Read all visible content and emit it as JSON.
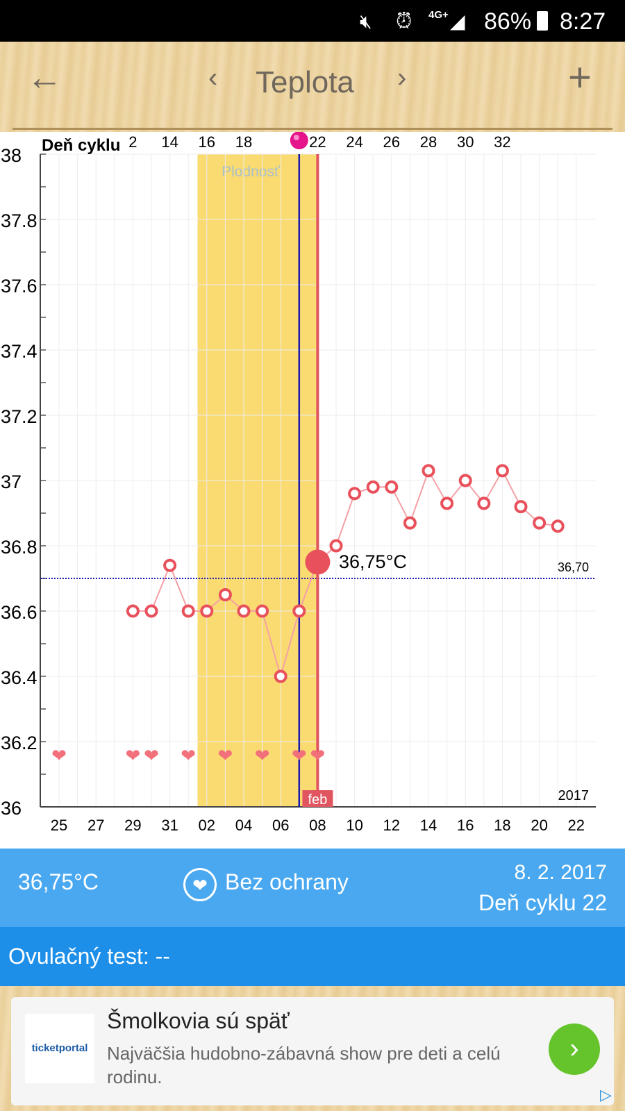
{
  "status_bar": {
    "battery": "86%",
    "time": "8:27",
    "network": "4G+",
    "icons": [
      "mute-icon",
      "alarm-icon",
      "signal-icon",
      "battery-icon"
    ]
  },
  "header": {
    "title": "Teplota",
    "back_icon": "←",
    "prev_icon": "‹",
    "next_icon": "›",
    "add_icon": "+"
  },
  "chart_data": {
    "type": "line",
    "top_axis_label": "Deň cyklu",
    "top_ticks": [
      "2",
      "14",
      "16",
      "18",
      "",
      "22",
      "24",
      "26",
      "28",
      "30",
      "32"
    ],
    "ovulation_marker_day": "20",
    "x_tick_labels": [
      "25",
      "27",
      "29",
      "31",
      "02",
      "04",
      "06",
      "08",
      "10",
      "12",
      "14",
      "16",
      "18",
      "20",
      "22"
    ],
    "y_tick_labels": [
      "38",
      "37.8",
      "37.6",
      "37.4",
      "37.2",
      "37",
      "36.8",
      "36.6",
      "36.4",
      "36.2",
      "36"
    ],
    "ylim": [
      36.0,
      38.0
    ],
    "year_label": "2017",
    "month_label": "feb",
    "fertility_label": "Plodnosť",
    "coverline": 36.7,
    "coverline_label": "36,70",
    "selected_label": "36,75°C",
    "selected_day_index": 14,
    "ovulation_day_index": 13,
    "fertile_window": [
      7.5,
      14
    ],
    "series": [
      {
        "values": [
          null,
          null,
          null,
          null,
          36.6,
          36.6,
          36.74,
          36.6,
          36.6,
          36.65,
          36.6,
          36.6,
          36.4,
          36.6,
          36.75,
          36.8,
          36.96,
          36.98,
          36.98,
          36.87,
          37.03,
          36.93,
          37.0,
          36.93,
          37.03,
          36.92,
          36.87,
          36.86,
          null
        ]
      }
    ],
    "intercourse_day_indices": [
      0,
      4,
      5,
      7,
      9,
      11,
      13,
      14
    ],
    "colors": {
      "line": "#f3a0a6",
      "point": "#e8505b",
      "fertile": "#fadb72",
      "ovulation": "#1b1bb0",
      "today": "#e05560",
      "coverline": "#1b1bb0"
    }
  },
  "info_panel": {
    "temperature": "36,75°C",
    "protection": "Bez ochrany",
    "date": "8. 2. 2017",
    "cycle_day": "Deň cyklu 22",
    "ovulation_test": "Ovulačný test: --"
  },
  "ad": {
    "logo": "ticketportal",
    "title": "Šmolkovia sú späť",
    "description": "Najväčšia hudobno-zábavná show pre deti a celú rodinu."
  }
}
